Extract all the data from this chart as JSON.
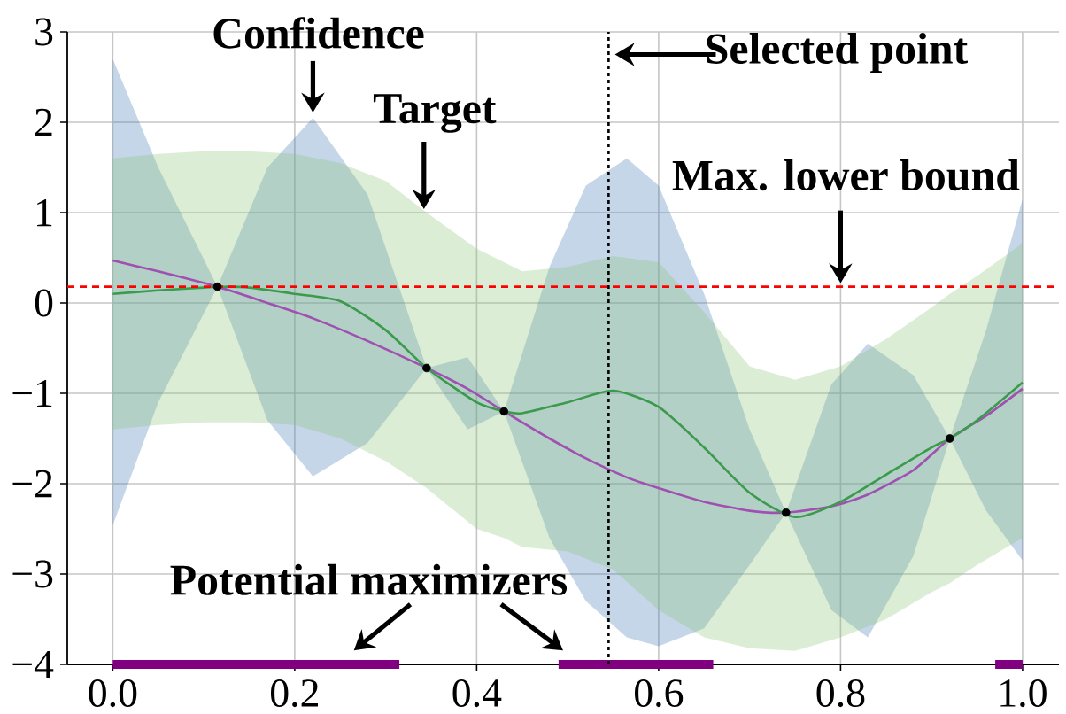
{
  "chart_data": {
    "type": "line",
    "xlim": [
      -0.05,
      1.04
    ],
    "ylim": [
      -4,
      3
    ],
    "xticks": [
      {
        "value": 0,
        "label": "0.0"
      },
      {
        "value": 0.2,
        "label": "0.2"
      },
      {
        "value": 0.4,
        "label": "0.4"
      },
      {
        "value": 0.6,
        "label": "0.6"
      },
      {
        "value": 0.8,
        "label": "0.8"
      },
      {
        "value": 1,
        "label": "1.0"
      }
    ],
    "yticks": [
      {
        "value": -4,
        "label": "−4"
      },
      {
        "value": -3,
        "label": "−3"
      },
      {
        "value": -2,
        "label": "−2"
      },
      {
        "value": -1,
        "label": "−1"
      },
      0,
      1,
      2,
      3
    ],
    "grid": true,
    "series": [
      {
        "type": "line",
        "color": "#a050b0",
        "x": [
          0,
          0.05,
          0.115,
          0.17,
          0.22,
          0.28,
          0.345,
          0.39,
          0.43,
          0.48,
          0.52,
          0.565,
          0.6,
          0.65,
          0.7,
          0.74,
          0.79,
          0.83,
          0.88,
          0.92,
          0.96,
          1.0
        ],
        "values": [
          0.47,
          0.35,
          0.18,
          0.0,
          -0.17,
          -0.42,
          -0.72,
          -0.95,
          -1.2,
          -1.5,
          -1.72,
          -1.93,
          -2.05,
          -2.2,
          -2.3,
          -2.32,
          -2.25,
          -2.12,
          -1.85,
          -1.5,
          -1.25,
          -0.95
        ],
        "upper": [
          2.7,
          1.5,
          0.18,
          1.5,
          2.05,
          1.2,
          -0.72,
          -0.6,
          -1.2,
          0.4,
          1.3,
          1.6,
          1.3,
          0.1,
          -1.4,
          -2.32,
          -0.9,
          -0.45,
          -0.8,
          -1.5,
          -0.3,
          1.15
        ],
        "lower": [
          -2.46,
          -1.1,
          0.18,
          -1.3,
          -1.92,
          -1.55,
          -0.72,
          -1.4,
          -1.2,
          -2.6,
          -3.3,
          -3.7,
          -3.8,
          -3.6,
          -2.9,
          -2.32,
          -3.4,
          -3.7,
          -2.8,
          -1.5,
          -2.3,
          -2.85
        ]
      },
      {
        "type": "line",
        "color": "#3c9a4c",
        "x": [
          0,
          0.05,
          0.1,
          0.115,
          0.15,
          0.2,
          0.25,
          0.3,
          0.345,
          0.4,
          0.43,
          0.45,
          0.5,
          0.55,
          0.6,
          0.65,
          0.7,
          0.75,
          0.8,
          0.85,
          0.9,
          0.92,
          0.95,
          1.0
        ],
        "values": [
          0.1,
          0.14,
          0.17,
          0.18,
          0.17,
          0.1,
          0.02,
          -0.3,
          -0.72,
          -1.1,
          -1.2,
          -1.22,
          -1.1,
          -0.97,
          -1.15,
          -1.6,
          -2.1,
          -2.37,
          -2.2,
          -1.9,
          -1.6,
          -1.5,
          -1.3,
          -0.88
        ],
        "upper": [
          1.6,
          1.65,
          1.68,
          1.68,
          1.68,
          1.65,
          1.55,
          1.35,
          1.0,
          0.6,
          0.45,
          0.35,
          0.4,
          0.52,
          0.45,
          -0.1,
          -0.7,
          -0.85,
          -0.7,
          -0.4,
          -0.05,
          0.1,
          0.3,
          0.66
        ],
        "lower": [
          -1.4,
          -1.35,
          -1.32,
          -1.32,
          -1.32,
          -1.35,
          -1.5,
          -1.75,
          -2.05,
          -2.5,
          -2.6,
          -2.7,
          -2.75,
          -2.95,
          -3.4,
          -3.7,
          -3.82,
          -3.85,
          -3.7,
          -3.5,
          -3.2,
          -3.1,
          -2.9,
          -2.6
        ]
      },
      {
        "type": "scatter",
        "color": "#000000",
        "marker": "circle",
        "x": [
          0.115,
          0.345,
          0.43,
          0.74,
          0.92
        ],
        "values": [
          0.18,
          -0.72,
          -1.2,
          -2.32,
          -1.5
        ]
      },
      {
        "type": "line",
        "color": "#800080",
        "x": [
          0,
          0.315,
          0.4,
          0.49,
          0.66,
          0.8,
          0.97,
          1.0
        ],
        "values": [
          -4,
          -4,
          null,
          -4,
          -4,
          null,
          -4,
          -4
        ]
      }
    ],
    "ref_lines": [
      {
        "axis": "y",
        "value": 0.18,
        "color": "#ff0000",
        "line_style": "dashed"
      },
      {
        "axis": "x",
        "value": 0.545,
        "color": "#000000",
        "line_style": "dotted"
      }
    ],
    "annotations": [
      {
        "text": "Confidence",
        "x": 0.22,
        "y": 2.05
      },
      {
        "text": "Target",
        "x": 0.342,
        "y": 1.0
      },
      {
        "text": "Selected point",
        "x": 0.548,
        "y": 2.75
      },
      {
        "text": "Max. lower bound",
        "x": 0.8,
        "y": 0.18
      },
      "Potential maximizers"
    ]
  }
}
